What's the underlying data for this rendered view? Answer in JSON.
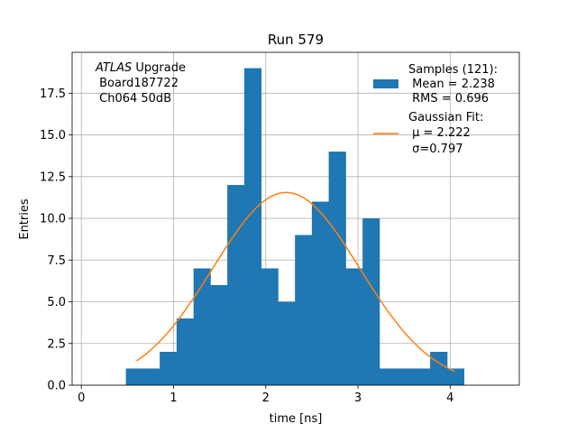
{
  "chart_data": {
    "type": "bar",
    "title": "Run 579",
    "xlabel": "time [ns]",
    "ylabel": "Entries",
    "xlim": [
      -0.1,
      4.75
    ],
    "ylim": [
      0,
      19.95
    ],
    "grid": true,
    "bin_width": 0.1833,
    "bins": [
      {
        "x0": 0.483,
        "x1": 0.667,
        "count": 1
      },
      {
        "x0": 0.667,
        "x1": 0.85,
        "count": 1
      },
      {
        "x0": 0.85,
        "x1": 1.033,
        "count": 2
      },
      {
        "x0": 1.033,
        "x1": 1.217,
        "count": 4
      },
      {
        "x0": 1.217,
        "x1": 1.4,
        "count": 7
      },
      {
        "x0": 1.4,
        "x1": 1.583,
        "count": 6
      },
      {
        "x0": 1.583,
        "x1": 1.767,
        "count": 12
      },
      {
        "x0": 1.767,
        "x1": 1.95,
        "count": 19
      },
      {
        "x0": 1.95,
        "x1": 2.133,
        "count": 7
      },
      {
        "x0": 2.133,
        "x1": 2.317,
        "count": 5
      },
      {
        "x0": 2.317,
        "x1": 2.5,
        "count": 9
      },
      {
        "x0": 2.5,
        "x1": 2.683,
        "count": 11
      },
      {
        "x0": 2.683,
        "x1": 2.867,
        "count": 14
      },
      {
        "x0": 2.867,
        "x1": 3.05,
        "count": 7
      },
      {
        "x0": 3.05,
        "x1": 3.233,
        "count": 10
      },
      {
        "x0": 3.233,
        "x1": 3.417,
        "count": 1
      },
      {
        "x0": 3.417,
        "x1": 3.6,
        "count": 1
      },
      {
        "x0": 3.6,
        "x1": 3.783,
        "count": 1
      },
      {
        "x0": 3.783,
        "x1": 3.967,
        "count": 2
      },
      {
        "x0": 3.967,
        "x1": 4.15,
        "count": 1
      }
    ],
    "fit": {
      "mu": 2.222,
      "sigma": 0.797,
      "amplitude": 11.55,
      "x_range": [
        0.6,
        4.05
      ]
    },
    "x_ticks": [
      {
        "value": 0,
        "label": "0"
      },
      {
        "value": 1,
        "label": "1"
      },
      {
        "value": 2,
        "label": "2"
      },
      {
        "value": 3,
        "label": "3"
      },
      {
        "value": 4,
        "label": "4"
      }
    ],
    "y_ticks": [
      {
        "value": 0,
        "label": "0.0"
      },
      {
        "value": 2.5,
        "label": "2.5"
      },
      {
        "value": 5,
        "label": "5.0"
      },
      {
        "value": 7.5,
        "label": "7.5"
      },
      {
        "value": 10,
        "label": "10.0"
      },
      {
        "value": 12.5,
        "label": "12.5"
      },
      {
        "value": 15,
        "label": "15.0"
      },
      {
        "value": 17.5,
        "label": "17.5"
      }
    ],
    "annotation": {
      "experiment": "ATLAS",
      "line1_rest": " Upgrade",
      "line2": " Board187722",
      "line3": " Ch064 50dB"
    },
    "legend": {
      "position": "upper-right",
      "samples_line1": "Samples (121):",
      "samples_line2": " Mean = 2.238",
      "samples_line3": " RMS = 0.696",
      "fit_line1": "Gaussian Fit:",
      "fit_line2": " μ = 2.222",
      "fit_line3": " σ=0.797"
    },
    "colors": {
      "bars": "#1f77b4",
      "fit": "#ff7f0e",
      "grid": "#b0b0b0",
      "axes": "#000000"
    }
  }
}
